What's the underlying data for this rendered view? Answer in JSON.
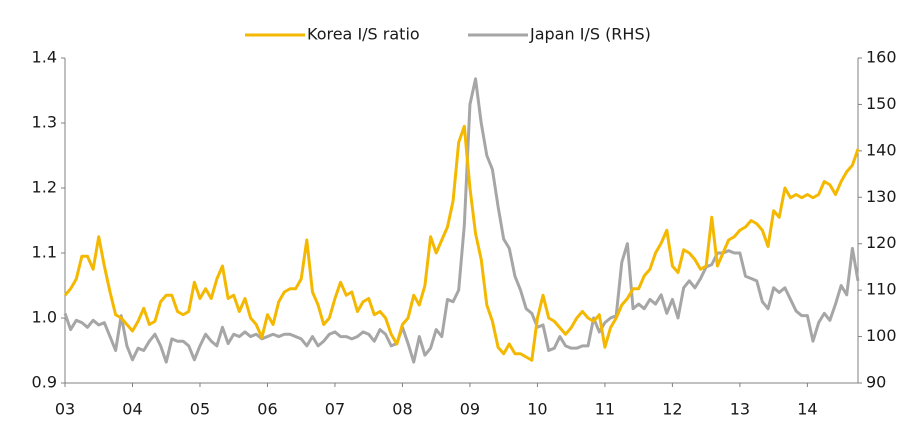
{
  "chart_data": {
    "type": "line",
    "x": [
      2003,
      2003.083,
      2003.167,
      2003.25,
      2003.333,
      2003.417,
      2003.5,
      2003.583,
      2003.667,
      2003.75,
      2003.833,
      2003.917,
      2004,
      2004.083,
      2004.167,
      2004.25,
      2004.333,
      2004.417,
      2004.5,
      2004.583,
      2004.667,
      2004.75,
      2004.833,
      2004.917,
      2005,
      2005.083,
      2005.167,
      2005.25,
      2005.333,
      2005.417,
      2005.5,
      2005.583,
      2005.667,
      2005.75,
      2005.833,
      2005.917,
      2006,
      2006.083,
      2006.167,
      2006.25,
      2006.333,
      2006.417,
      2006.5,
      2006.583,
      2006.667,
      2006.75,
      2006.833,
      2006.917,
      2007,
      2007.083,
      2007.167,
      2007.25,
      2007.333,
      2007.417,
      2007.5,
      2007.583,
      2007.667,
      2007.75,
      2007.833,
      2007.917,
      2008,
      2008.083,
      2008.167,
      2008.25,
      2008.333,
      2008.417,
      2008.5,
      2008.583,
      2008.667,
      2008.75,
      2008.833,
      2008.917,
      2009,
      2009.083,
      2009.167,
      2009.25,
      2009.333,
      2009.417,
      2009.5,
      2009.583,
      2009.667,
      2009.75,
      2009.833,
      2009.917,
      2010,
      2010.083,
      2010.167,
      2010.25,
      2010.333,
      2010.417,
      2010.5,
      2010.583,
      2010.667,
      2010.75,
      2010.833,
      2010.917,
      2011,
      2011.083,
      2011.167,
      2011.25,
      2011.333,
      2011.417,
      2011.5,
      2011.583,
      2011.667,
      2011.75,
      2011.833,
      2011.917,
      2012,
      2012.083,
      2012.167,
      2012.25,
      2012.333,
      2012.417,
      2012.5,
      2012.583,
      2012.667,
      2012.75,
      2012.833,
      2012.917,
      2013,
      2013.083,
      2013.167,
      2013.25,
      2013.333,
      2013.417,
      2013.5,
      2013.583,
      2013.667,
      2013.75,
      2013.833,
      2013.917,
      2014,
      2014.083,
      2014.167,
      2014.25,
      2014.333,
      2014.417,
      2014.5,
      2014.583,
      2014.667,
      2014.75
    ],
    "series": [
      {
        "name": "Korea I/S ratio",
        "color": "#f5b800",
        "values": [
          1.035,
          1.045,
          1.06,
          1.095,
          1.095,
          1.075,
          1.125,
          1.08,
          1.04,
          1.005,
          1.0,
          0.99,
          0.98,
          0.995,
          1.015,
          0.99,
          0.995,
          1.025,
          1.035,
          1.035,
          1.01,
          1.005,
          1.01,
          1.055,
          1.03,
          1.045,
          1.03,
          1.06,
          1.08,
          1.03,
          1.035,
          1.01,
          1.03,
          1.0,
          0.99,
          0.97,
          1.005,
          0.99,
          1.025,
          1.04,
          1.045,
          1.045,
          1.06,
          1.12,
          1.04,
          1.02,
          0.99,
          1.0,
          1.03,
          1.055,
          1.035,
          1.04,
          1.01,
          1.025,
          1.03,
          1.005,
          1.01,
          1.0,
          0.975,
          0.96,
          0.99,
          1.0,
          1.035,
          1.02,
          1.05,
          1.125,
          1.1,
          1.12,
          1.14,
          1.18,
          1.27,
          1.295,
          1.2,
          1.13,
          1.09,
          1.02,
          0.995,
          0.955,
          0.945,
          0.96,
          0.945,
          0.945,
          0.94,
          0.935,
          1.0,
          1.035,
          1.0,
          0.995,
          0.985,
          0.975,
          0.985,
          1.0,
          1.01,
          1.0,
          0.995,
          1.005,
          0.955,
          0.985,
          1.0,
          1.02,
          1.03,
          1.045,
          1.045,
          1.065,
          1.075,
          1.1,
          1.115,
          1.135,
          1.08,
          1.07,
          1.105,
          1.1,
          1.09,
          1.075,
          1.08,
          1.155,
          1.08,
          1.1,
          1.12,
          1.125,
          1.135,
          1.14,
          1.15,
          1.145,
          1.135,
          1.11,
          1.165,
          1.155,
          1.2,
          1.185,
          1.19,
          1.185,
          1.19,
          1.185,
          1.19,
          1.21,
          1.205,
          1.19,
          1.21,
          1.225,
          1.235,
          1.26
        ]
      },
      {
        "name": "Japan I/S (RHS)",
        "color": "#a6a6a6",
        "axis": "y2",
        "values": [
          105,
          101.5,
          103.5,
          103,
          102,
          103.5,
          102.5,
          103,
          100,
          97,
          104.5,
          98,
          95,
          97.5,
          97,
          99,
          100.5,
          98,
          94.5,
          99.5,
          99,
          99,
          98,
          95,
          98,
          100.5,
          99,
          98,
          102,
          98.5,
          100.5,
          100,
          101,
          100,
          100.5,
          99.5,
          100,
          100.5,
          100,
          100.5,
          100.5,
          100,
          99.5,
          98,
          100,
          98,
          99,
          100.5,
          101,
          100,
          100,
          99.5,
          100,
          101,
          100.5,
          99,
          101.5,
          100.5,
          98,
          98.5,
          102,
          98.5,
          94.5,
          100,
          96,
          97.5,
          101.5,
          100,
          108,
          107.5,
          110,
          124,
          150,
          155.5,
          146,
          139,
          136,
          128,
          121,
          119,
          113,
          110,
          106,
          105,
          102,
          102.5,
          97,
          97.5,
          100,
          98,
          97.5,
          97.5,
          98,
          98,
          104,
          101,
          103,
          104,
          104.5,
          116,
          120,
          106,
          107,
          106,
          108,
          107,
          109,
          105,
          108,
          104,
          110.5,
          112,
          110.5,
          112.5,
          115,
          115.5,
          118,
          118,
          118.5,
          118,
          118,
          113,
          112.5,
          112,
          107.5,
          106,
          110.5,
          109.5,
          110.5,
          108,
          105.5,
          104.5,
          104.5,
          99,
          103,
          105,
          103.5,
          107,
          111,
          109,
          119,
          112
        ]
      }
    ],
    "xlim": [
      2003,
      2014.75
    ],
    "xticks": [
      {
        "value": 2003,
        "label": "03"
      },
      {
        "value": 2004,
        "label": "04"
      },
      {
        "value": 2005,
        "label": "05"
      },
      {
        "value": 2006,
        "label": "06"
      },
      {
        "value": 2007,
        "label": "07"
      },
      {
        "value": 2008,
        "label": "08"
      },
      {
        "value": 2009,
        "label": "09"
      },
      {
        "value": 2010,
        "label": "10"
      },
      {
        "value": 2011,
        "label": "11"
      },
      {
        "value": 2012,
        "label": "12"
      },
      {
        "value": 2013,
        "label": "13"
      },
      {
        "value": 2014,
        "label": "14"
      }
    ],
    "ylim": [
      0.9,
      1.4
    ],
    "yticks": [
      0.9,
      {
        "value": 1.0,
        "label": "1.0"
      },
      1.1,
      1.2,
      1.3,
      1.4
    ],
    "y2lim": [
      90,
      160
    ],
    "y2ticks": [
      90,
      100,
      110,
      120,
      130,
      140,
      150,
      160
    ],
    "legend": "top"
  }
}
